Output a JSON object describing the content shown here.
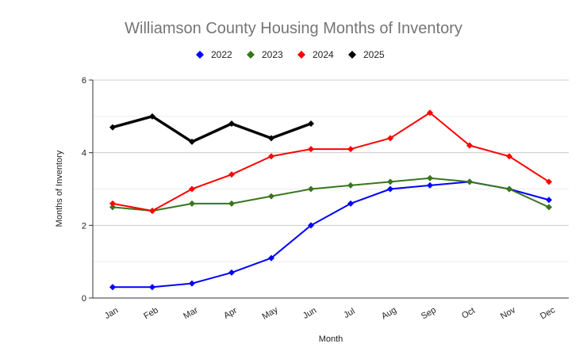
{
  "chart_data": {
    "type": "line",
    "title": "Williamson County Housing Months of Inventory",
    "xlabel": "Month",
    "ylabel": "Months of Inventory",
    "ylim": [
      0,
      6
    ],
    "yticks": [
      "0",
      "2",
      "4",
      "6"
    ],
    "grid": true,
    "legend_position": "top",
    "categories": [
      "Jan",
      "Feb",
      "Mar",
      "Apr",
      "May",
      "Jun",
      "Jul",
      "Aug",
      "Sep",
      "Oct",
      "Nov",
      "Dec"
    ],
    "series": [
      {
        "name": "2022",
        "color": "#0000ff",
        "values": [
          0.3,
          0.3,
          0.4,
          0.7,
          1.1,
          2.0,
          2.6,
          3.0,
          3.1,
          3.2,
          3.0,
          2.7
        ]
      },
      {
        "name": "2023",
        "color": "#38761d",
        "values": [
          2.5,
          2.4,
          2.6,
          2.6,
          2.8,
          3.0,
          3.1,
          3.2,
          3.3,
          3.2,
          3.0,
          2.5
        ]
      },
      {
        "name": "2024",
        "color": "#ff0000",
        "values": [
          2.6,
          2.4,
          3.0,
          3.4,
          3.9,
          4.1,
          4.1,
          4.4,
          5.1,
          4.2,
          3.9,
          3.2
        ]
      },
      {
        "name": "2025",
        "color": "#000000",
        "values": [
          4.7,
          5.0,
          4.3,
          4.8,
          4.4,
          4.8,
          null,
          null,
          null,
          null,
          null,
          null
        ]
      }
    ]
  }
}
